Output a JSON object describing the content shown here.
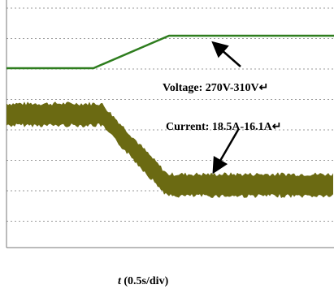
{
  "annotations": {
    "voltage": "Voltage: 270V-310V↵",
    "current": "Current: 18.5A-16.1A↵"
  },
  "x_axis_label": {
    "variable": "t",
    "scale": "(0.5s/div)"
  }
}
